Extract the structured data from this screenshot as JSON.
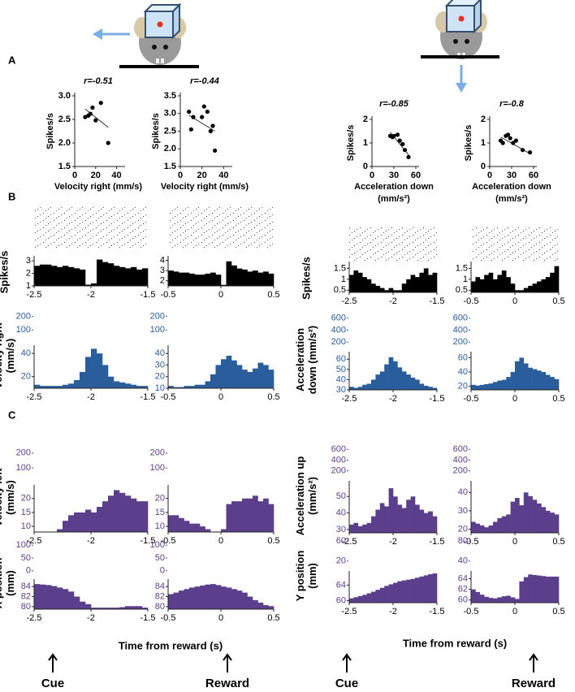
{
  "figure": {
    "panels": [
      "A",
      "B",
      "C"
    ],
    "xlabels": [
      "Time from reward (s)",
      "Time from reward (s)"
    ],
    "events": [
      "Cue",
      "Reward",
      "Cue",
      "Reward"
    ]
  },
  "chart_data": [
    {
      "type": "scatter",
      "title": "r=-0.51",
      "xlabel": [
        "Velocity right (mm/s)"
      ],
      "ylabel": "Spikes/s",
      "x": [
        10,
        13,
        15,
        17,
        20,
        25,
        32
      ],
      "y": [
        2.55,
        2.58,
        2.62,
        2.75,
        2.48,
        2.85,
        2.0
      ],
      "fit_x": [
        10,
        32
      ],
      "fit_y": [
        2.72,
        2.33
      ],
      "xlim": [
        0,
        45
      ],
      "xticks": [
        0,
        20,
        40
      ],
      "ylim": [
        1.5,
        3.0
      ],
      "yticks": [
        1.5,
        {
          "value": 2,
          "label": "2.0"
        },
        2.5,
        {
          "value": 3,
          "label": "3.0"
        }
      ],
      "color": "#000000"
    },
    {
      "type": "scatter",
      "title": "r=-0.44",
      "xlabel": [
        "Velocity right (mm/s)"
      ],
      "ylabel": "Spikes/s",
      "x": [
        8,
        10,
        12,
        20,
        22,
        25,
        28,
        30,
        32
      ],
      "y": [
        3.05,
        2.55,
        2.9,
        2.9,
        3.2,
        3.05,
        2.5,
        2.65,
        1.95
      ],
      "fit_x": [
        8,
        32
      ],
      "fit_y": [
        2.95,
        2.5
      ],
      "xlim": [
        0,
        45
      ],
      "xticks": [
        0,
        20,
        40
      ],
      "ylim": [
        1.5,
        3.5
      ],
      "yticks": [
        1.5,
        {
          "value": 2,
          "label": "2.0"
        },
        2.5,
        {
          "value": 3,
          "label": "3.0"
        },
        3.5
      ],
      "color": "#000000"
    },
    {
      "type": "scatter",
      "title": "r=-0.85",
      "xlabel": [
        "Acceleration down",
        "(mm/s²)"
      ],
      "ylabel": "Spikes/s",
      "x": [
        25,
        28,
        30,
        35,
        38,
        42,
        45,
        50
      ],
      "y": [
        1.3,
        1.25,
        1.3,
        1.35,
        1.1,
        0.95,
        0.7,
        0.4
      ],
      "fit_x": [
        25,
        50
      ],
      "fit_y": [
        1.45,
        0.5
      ],
      "xlim": [
        0,
        60
      ],
      "xticks": [
        0,
        30,
        60
      ],
      "ylim": [
        0,
        2
      ],
      "yticks": [
        0,
        1,
        2
      ],
      "color": "#000000"
    },
    {
      "type": "scatter",
      "title": "r=-0.8",
      "xlabel": [
        "Acceleration down",
        "(mm/s²)"
      ],
      "ylabel": "Spikes/s",
      "x": [
        15,
        18,
        22,
        25,
        28,
        32,
        36,
        45,
        55
      ],
      "y": [
        1.1,
        1.0,
        1.3,
        1.35,
        1.2,
        1.0,
        1.1,
        0.7,
        0.6
      ],
      "fit_x": [
        15,
        55
      ],
      "fit_y": [
        1.25,
        0.55
      ],
      "xlim": [
        0,
        60
      ],
      "xticks": [
        0,
        30,
        60
      ],
      "ylim": [
        0,
        2
      ],
      "yticks": [
        0,
        1,
        2
      ],
      "color": "#000000"
    },
    {
      "type": "histogram",
      "ylabel": [
        "Spikes/s"
      ],
      "raster": true,
      "color": "#000000",
      "bins": [
        -2.5,
        -2.45,
        -2.4,
        -2.35,
        -2.3,
        -2.25,
        -2.2,
        -2.15,
        -2.1,
        -2.05,
        -2,
        -1.95,
        -1.9,
        -1.85,
        -1.8,
        -1.75,
        -1.7,
        -1.65,
        -1.6,
        -1.55,
        -1.5
      ],
      "values": [
        2.6,
        2.7,
        2.7,
        2.6,
        2.5,
        2.6,
        2.5,
        2.4,
        2.3,
        1.1,
        1.2,
        3.1,
        2.9,
        2.8,
        2.6,
        2.5,
        2.4,
        2.5,
        2.3,
        2.4
      ],
      "xlim": [
        -2.5,
        -1.5
      ],
      "xticks": [
        -2.5,
        -2,
        -1.5
      ],
      "ylim": [
        1,
        3.2
      ],
      "yticks": [
        1,
        2,
        3
      ]
    },
    {
      "type": "histogram",
      "raster": true,
      "color": "#000000",
      "bins": [
        -0.5,
        -0.45,
        -0.4,
        -0.35,
        -0.3,
        -0.25,
        -0.2,
        -0.15,
        -0.1,
        -0.05,
        0,
        0.05,
        0.1,
        0.15,
        0.2,
        0.25,
        0.3,
        0.35,
        0.4,
        0.45,
        0.5
      ],
      "values": [
        3.0,
        2.9,
        2.8,
        2.8,
        2.7,
        2.6,
        2.6,
        2.7,
        2.8,
        2.6,
        1.6,
        3.9,
        3.5,
        3.2,
        3.1,
        2.9,
        3.0,
        2.8,
        2.9,
        2.7
      ],
      "xlim": [
        -0.5,
        0.5
      ],
      "xticks": [
        -0.5,
        0,
        0.5
      ],
      "ylim": [
        1.5,
        4.2
      ],
      "yticks": [
        2,
        3,
        4
      ]
    },
    {
      "type": "histogram",
      "ylabel": [
        "Velocity right",
        "(mm/s)"
      ],
      "color": "#2a5d9b",
      "bins": [
        -2.5,
        -2.45,
        -2.4,
        -2.35,
        -2.3,
        -2.25,
        -2.2,
        -2.15,
        -2.1,
        -2.05,
        -2,
        -1.95,
        -1.9,
        -1.85,
        -1.8,
        -1.75,
        -1.7,
        -1.65,
        -1.6,
        -1.55,
        -1.5
      ],
      "values": [
        13,
        12,
        12,
        12,
        12,
        13,
        14,
        17,
        24,
        37,
        44,
        40,
        30,
        20,
        16,
        15,
        14,
        13,
        12,
        12
      ],
      "xlim": [
        -2.5,
        -1.5
      ],
      "xticks": [
        -2.5,
        -2,
        -1.5
      ],
      "ylim": [
        10,
        45
      ],
      "yticks": [
        20,
        40
      ],
      "inset_ylim": [
        90,
        210
      ],
      "inset_yticks": [
        100,
        200
      ]
    },
    {
      "type": "histogram",
      "color": "#2a5d9b",
      "bins": [
        -0.5,
        -0.45,
        -0.4,
        -0.35,
        -0.3,
        -0.25,
        -0.2,
        -0.15,
        -0.1,
        -0.05,
        0,
        0.05,
        0.1,
        0.15,
        0.2,
        0.25,
        0.3,
        0.35,
        0.4,
        0.45,
        0.5
      ],
      "values": [
        12,
        11,
        11,
        12,
        12,
        13,
        13,
        16,
        22,
        30,
        35,
        38,
        34,
        30,
        26,
        24,
        27,
        32,
        30,
        26
      ],
      "xlim": [
        -0.5,
        0.5
      ],
      "xticks": [
        -0.5,
        0,
        0.5
      ],
      "ylim": [
        10,
        45
      ],
      "yticks": [
        10,
        20,
        30,
        40
      ],
      "inset_ylim": [
        90,
        210
      ],
      "inset_yticks": [
        100,
        200
      ]
    },
    {
      "type": "histogram",
      "ylabel": [
        "Velocity left",
        "(mm/s)"
      ],
      "color": "#5b3f8c",
      "bins": [
        -2.5,
        -2.45,
        -2.4,
        -2.35,
        -2.3,
        -2.25,
        -2.2,
        -2.15,
        -2.1,
        -2.05,
        -2,
        -1.95,
        -1.9,
        -1.85,
        -1.8,
        -1.75,
        -1.7,
        -1.65,
        -1.6,
        -1.55,
        -1.5
      ],
      "values": [
        8,
        8,
        8,
        8,
        9,
        12,
        14,
        15,
        15,
        16,
        15,
        17,
        19,
        21,
        23,
        22,
        21,
        20,
        19,
        19
      ],
      "xlim": [
        -2.5,
        -1.5
      ],
      "xticks": [
        -2.5,
        -2,
        -1.5
      ],
      "ylim": [
        8,
        24
      ],
      "yticks": [
        10,
        15,
        20
      ],
      "inset_ylim": [
        90,
        210
      ],
      "inset_yticks": [
        100,
        200
      ]
    },
    {
      "type": "histogram",
      "color": "#5b3f8c",
      "bins": [
        -0.5,
        -0.45,
        -0.4,
        -0.35,
        -0.3,
        -0.25,
        -0.2,
        -0.15,
        -0.1,
        -0.05,
        0,
        0.05,
        0.1,
        0.15,
        0.2,
        0.25,
        0.3,
        0.35,
        0.4,
        0.45,
        0.5
      ],
      "values": [
        14,
        14,
        13,
        12,
        11,
        11,
        10,
        9,
        8,
        8,
        9,
        18,
        19,
        19,
        20,
        20,
        21,
        19,
        20,
        18
      ],
      "xlim": [
        -0.5,
        0.5
      ],
      "xticks": [
        -0.5,
        0,
        0.5
      ],
      "ylim": [
        8,
        24
      ],
      "yticks": [
        10,
        15,
        20
      ],
      "inset_ylim": [
        90,
        210
      ],
      "inset_yticks": [
        100,
        200
      ]
    },
    {
      "type": "histogram",
      "ylabel": [
        "X position",
        "(mm)"
      ],
      "color": "#5b3f8c",
      "bins": [
        -2.5,
        -2.45,
        -2.4,
        -2.35,
        -2.3,
        -2.25,
        -2.2,
        -2.15,
        -2.1,
        -2.05,
        -2,
        -1.95,
        -1.9,
        -1.85,
        -1.8,
        -1.75,
        -1.7,
        -1.65,
        -1.6,
        -1.55,
        -1.5
      ],
      "values": [
        84.5,
        84.4,
        84.3,
        84.1,
        83.8,
        83.5,
        83,
        82,
        81,
        80.5,
        79.8,
        79.8,
        79.8,
        79.8,
        79.8,
        79.9,
        80.1,
        80.1,
        80.1,
        79.8
      ],
      "xlim": [
        -2.5,
        -1.5
      ],
      "xticks": [
        -2.5,
        -2,
        -1.5
      ],
      "ylim": [
        79.5,
        85
      ],
      "yticks": [
        80,
        82,
        84
      ],
      "inset_ylim": [
        -10,
        110
      ],
      "inset_yticks": [
        0,
        50,
        100
      ]
    },
    {
      "type": "histogram",
      "color": "#5b3f8c",
      "bins": [
        -0.5,
        -0.45,
        -0.4,
        -0.35,
        -0.3,
        -0.25,
        -0.2,
        -0.15,
        -0.1,
        -0.05,
        0,
        0.05,
        0.1,
        0.15,
        0.2,
        0.25,
        0.3,
        0.35,
        0.4,
        0.45,
        0.5
      ],
      "values": [
        82.5,
        82.8,
        83.2,
        83.5,
        83.8,
        84,
        84.2,
        84.4,
        84.5,
        84.3,
        84,
        83.8,
        83.5,
        83.2,
        82.8,
        82,
        81.3,
        80.8,
        80.3,
        80.1
      ],
      "xlim": [
        -0.5,
        0.5
      ],
      "xticks": [
        -0.5,
        0,
        0.5
      ],
      "ylim": [
        79.5,
        85
      ],
      "yticks": [
        80,
        82,
        84
      ],
      "inset_ylim": [
        -10,
        110
      ],
      "inset_yticks": [
        0,
        50,
        100
      ]
    },
    {
      "type": "histogram",
      "ylabel": [
        "Spikes/s"
      ],
      "raster": true,
      "color": "#000000",
      "bins": [
        -2.5,
        -2.45,
        -2.4,
        -2.35,
        -2.3,
        -2.25,
        -2.2,
        -2.15,
        -2.1,
        -2.05,
        -2,
        -1.95,
        -1.9,
        -1.85,
        -1.8,
        -1.75,
        -1.7,
        -1.65,
        -1.6,
        -1.55,
        -1.5
      ],
      "values": [
        1.2,
        1.4,
        1.3,
        1.1,
        1.0,
        0.8,
        0.7,
        0.6,
        0.5,
        0.6,
        0.5,
        0.5,
        0.8,
        1.0,
        1.2,
        1.1,
        1.3,
        1.5,
        1.2,
        1.3
      ],
      "xlim": [
        -2.5,
        -1.5
      ],
      "xticks": [
        -2.5,
        -2,
        -1.5
      ],
      "ylim": [
        0.4,
        1.7
      ],
      "yticks": [
        0.5,
        1,
        1.5
      ]
    },
    {
      "type": "histogram",
      "raster": true,
      "color": "#000000",
      "bins": [
        -0.5,
        -0.45,
        -0.4,
        -0.35,
        -0.3,
        -0.25,
        -0.2,
        -0.15,
        -0.1,
        -0.05,
        0,
        0.05,
        0.1,
        0.15,
        0.2,
        0.25,
        0.3,
        0.35,
        0.4,
        0.45,
        0.5
      ],
      "values": [
        0.9,
        1.1,
        1.0,
        1.2,
        1.3,
        1.0,
        1.2,
        1.4,
        1.1,
        0.8,
        0.5,
        0.5,
        0.6,
        0.7,
        0.8,
        0.9,
        1.0,
        1.1,
        1.3,
        1.6
      ],
      "xlim": [
        -0.5,
        0.5
      ],
      "xticks": [
        -0.5,
        0,
        0.5
      ],
      "ylim": [
        0.4,
        1.7
      ],
      "yticks": [
        0.5,
        1,
        1.5
      ]
    },
    {
      "type": "histogram",
      "ylabel": [
        "Acceleration",
        "down (mm/s²)"
      ],
      "color": "#2a5d9b",
      "bins": [
        -2.5,
        -2.45,
        -2.4,
        -2.35,
        -2.3,
        -2.25,
        -2.2,
        -2.15,
        -2.1,
        -2.05,
        -2,
        -1.95,
        -1.9,
        -1.85,
        -1.8,
        -1.75,
        -1.7,
        -1.65,
        -1.6,
        -1.55,
        -1.5
      ],
      "values": [
        33,
        32,
        33,
        35,
        36,
        40,
        45,
        48,
        55,
        62,
        58,
        52,
        48,
        45,
        42,
        40,
        36,
        34,
        33,
        32
      ],
      "xlim": [
        -2.5,
        -1.5
      ],
      "xticks": [
        -2.5,
        -2,
        -1.5
      ],
      "ylim": [
        30,
        65
      ],
      "yticks": [
        30,
        40,
        50,
        60
      ],
      "inset_ylim": [
        150,
        650
      ],
      "inset_yticks": [
        200,
        400,
        600
      ]
    },
    {
      "type": "histogram",
      "color": "#2a5d9b",
      "bins": [
        -0.5,
        -0.45,
        -0.4,
        -0.35,
        -0.3,
        -0.25,
        -0.2,
        -0.15,
        -0.1,
        -0.05,
        0,
        0.05,
        0.1,
        0.15,
        0.2,
        0.25,
        0.3,
        0.35,
        0.4,
        0.45,
        0.5
      ],
      "values": [
        22,
        21,
        22,
        23,
        24,
        26,
        28,
        29,
        33,
        40,
        55,
        60,
        52,
        46,
        44,
        42,
        40,
        36,
        33,
        30
      ],
      "xlim": [
        -0.5,
        0.5
      ],
      "xticks": [
        -0.5,
        0,
        0.5
      ],
      "ylim": [
        15,
        65
      ],
      "yticks": [
        20,
        40,
        60
      ],
      "inset_ylim": [
        150,
        650
      ],
      "inset_yticks": [
        200,
        400,
        600
      ]
    },
    {
      "type": "histogram",
      "ylabel": [
        "Acceleration up",
        "(mm/s²)"
      ],
      "color": "#5b3f8c",
      "bins": [
        -2.5,
        -2.45,
        -2.4,
        -2.35,
        -2.3,
        -2.25,
        -2.2,
        -2.15,
        -2.1,
        -2.05,
        -2,
        -1.95,
        -1.9,
        -1.85,
        -1.8,
        -1.75,
        -1.7,
        -1.65,
        -1.6,
        -1.55,
        -1.5
      ],
      "values": [
        33,
        34,
        32,
        33,
        34,
        38,
        42,
        46,
        44,
        55,
        50,
        45,
        43,
        48,
        50,
        45,
        42,
        40,
        41,
        38
      ],
      "xlim": [
        -2.5,
        -1.5
      ],
      "xticks": [
        -2.5,
        -2,
        -1.5
      ],
      "ylim": [
        28,
        58
      ],
      "yticks": [
        30,
        40,
        50
      ],
      "inset_ylim": [
        150,
        650
      ],
      "inset_yticks": [
        200,
        400,
        600
      ]
    },
    {
      "type": "histogram",
      "color": "#5b3f8c",
      "bins": [
        -0.5,
        -0.45,
        -0.4,
        -0.35,
        -0.3,
        -0.25,
        -0.2,
        -0.15,
        -0.1,
        -0.05,
        0,
        0.05,
        0.1,
        0.15,
        0.2,
        0.25,
        0.3,
        0.35,
        0.4,
        0.45,
        0.5
      ],
      "values": [
        24,
        23,
        22,
        21,
        22,
        24,
        26,
        27,
        28,
        35,
        37,
        33,
        40,
        38,
        36,
        34,
        32,
        30,
        29,
        28
      ],
      "xlim": [
        -0.5,
        0.5
      ],
      "xticks": [
        -0.5,
        0,
        0.5
      ],
      "ylim": [
        18,
        45
      ],
      "yticks": [
        20,
        30,
        40
      ],
      "inset_ylim": [
        150,
        650
      ],
      "inset_yticks": [
        200,
        400,
        600
      ]
    },
    {
      "type": "histogram",
      "ylabel": [
        "Y position",
        "(mm)"
      ],
      "color": "#5b3f8c",
      "bins": [
        -2.5,
        -2.45,
        -2.4,
        -2.35,
        -2.3,
        -2.25,
        -2.2,
        -2.15,
        -2.1,
        -2.05,
        -2,
        -1.95,
        -1.9,
        -1.85,
        -1.8,
        -1.75,
        -1.7,
        -1.65,
        -1.6,
        -1.55,
        -1.5
      ],
      "values": [
        60.6,
        60.9,
        61.2,
        61.5,
        61.9,
        62.3,
        62.8,
        63.3,
        63.8,
        64.2,
        64.6,
        65,
        65.2,
        65.4,
        65.6,
        65.9,
        66.2,
        66.5,
        66.8,
        67
      ],
      "xlim": [
        -2.5,
        -1.5
      ],
      "xticks": [
        -2.5,
        -2,
        -1.5
      ],
      "ylim": [
        59.5,
        67
      ],
      "yticks": [
        60,
        64
      ],
      "inset_ylim": [
        10,
        70
      ],
      "inset_yticks": [
        20,
        60
      ]
    },
    {
      "type": "histogram",
      "color": "#5b3f8c",
      "bins": [
        -0.5,
        -0.45,
        -0.4,
        -0.35,
        -0.3,
        -0.25,
        -0.2,
        -0.15,
        -0.1,
        -0.05,
        0,
        0.05,
        0.1,
        0.15,
        0.2,
        0.25,
        0.3,
        0.35,
        0.4,
        0.45,
        0.5
      ],
      "values": [
        62,
        61.5,
        61,
        60.6,
        60.4,
        60.3,
        60.5,
        60.7,
        60.8,
        60.5,
        60.2,
        63.5,
        64.3,
        64.8,
        64.7,
        64.6,
        64.5,
        64.4,
        64.4,
        64.4
      ],
      "xlim": [
        -0.5,
        0.5
      ],
      "xticks": [
        -0.5,
        0,
        0.5
      ],
      "ylim": [
        59.5,
        65
      ],
      "yticks": [
        60,
        62,
        64
      ],
      "inset_ylim": [
        30,
        90
      ],
      "inset_yticks": [
        40,
        80
      ]
    }
  ]
}
